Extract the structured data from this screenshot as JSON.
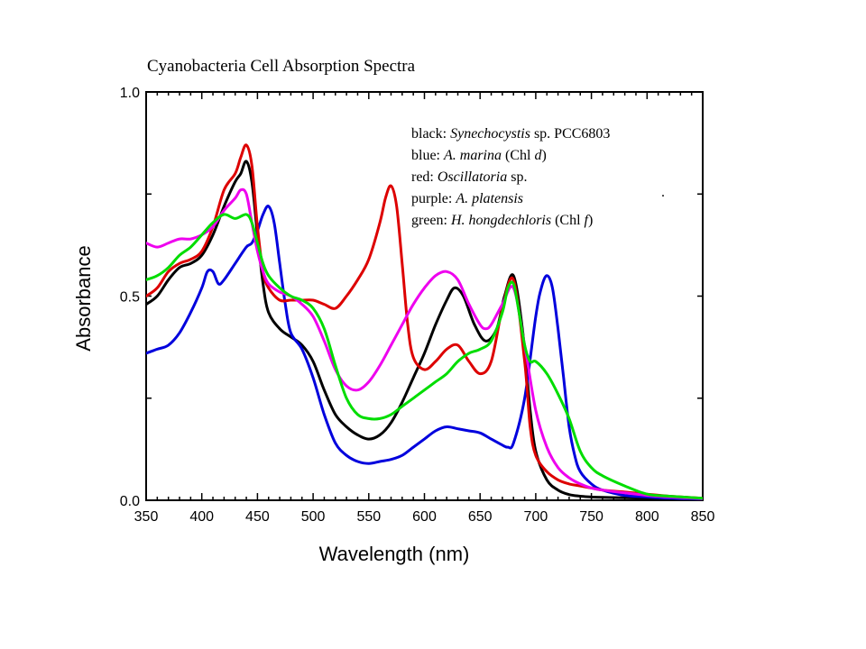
{
  "chart_data": {
    "type": "line",
    "title": "Cyanobacteria Cell Absorption Spectra",
    "xlabel": "Wavelength (nm)",
    "ylabel": "Absorbance",
    "xlim": [
      350,
      850
    ],
    "ylim": [
      0.0,
      1.0
    ],
    "x_ticks": [
      350,
      400,
      450,
      500,
      550,
      600,
      650,
      700,
      750,
      800,
      850
    ],
    "x_tick_labels": [
      "350",
      "400",
      "450",
      "500",
      "550",
      "600",
      "650",
      "700",
      "750",
      "800",
      "850"
    ],
    "y_ticks": [
      0.0,
      0.5,
      1.0
    ],
    "y_tick_labels": [
      "0.0",
      "0.5",
      "1.0"
    ],
    "grid": false,
    "legend_position": "top-right",
    "legend": [
      {
        "color_word": "black:",
        "name": "Synechocystis",
        "suffix": " sp. PCC6803"
      },
      {
        "color_word": "blue:",
        "name": "A. marina",
        "suffix": " (Chl ",
        "note": "d",
        "close": ")"
      },
      {
        "color_word": "red:",
        "name": "Oscillatoria",
        "suffix": " sp."
      },
      {
        "color_word": "purple:",
        "name": "A. platensis",
        "suffix": ""
      },
      {
        "color_word": "green:",
        "name": "H. hongdechloris",
        "suffix": " (Chl ",
        "note": "f",
        "close": ")"
      }
    ],
    "series": [
      {
        "color": "#000000",
        "x": [
          350,
          360,
          370,
          380,
          390,
          400,
          410,
          420,
          430,
          435,
          440,
          445,
          450,
          455,
          460,
          470,
          480,
          490,
          500,
          510,
          520,
          530,
          540,
          550,
          560,
          570,
          580,
          590,
          600,
          610,
          620,
          627,
          635,
          645,
          655,
          665,
          672,
          680,
          688,
          695,
          700,
          710,
          720,
          730,
          740,
          750,
          760,
          780,
          800,
          820,
          850
        ],
        "y": [
          0.48,
          0.5,
          0.54,
          0.57,
          0.58,
          0.6,
          0.65,
          0.72,
          0.78,
          0.8,
          0.83,
          0.78,
          0.65,
          0.53,
          0.46,
          0.42,
          0.4,
          0.38,
          0.34,
          0.27,
          0.21,
          0.18,
          0.16,
          0.15,
          0.16,
          0.19,
          0.24,
          0.3,
          0.36,
          0.43,
          0.49,
          0.52,
          0.5,
          0.43,
          0.39,
          0.42,
          0.5,
          0.55,
          0.42,
          0.22,
          0.12,
          0.05,
          0.025,
          0.014,
          0.01,
          0.008,
          0.007,
          0.006,
          0.005,
          0.004,
          0.003
        ]
      },
      {
        "color": "#0000dd",
        "x": [
          350,
          360,
          370,
          380,
          390,
          400,
          405,
          410,
          415,
          420,
          430,
          440,
          445,
          450,
          455,
          460,
          465,
          470,
          475,
          480,
          490,
          500,
          510,
          520,
          530,
          540,
          550,
          560,
          570,
          580,
          590,
          600,
          610,
          620,
          630,
          640,
          650,
          660,
          670,
          675,
          680,
          690,
          700,
          705,
          710,
          715,
          720,
          725,
          730,
          735,
          740,
          750,
          760,
          780,
          800,
          820,
          850
        ],
        "y": [
          0.36,
          0.37,
          0.38,
          0.41,
          0.46,
          0.52,
          0.56,
          0.56,
          0.53,
          0.54,
          0.58,
          0.62,
          0.63,
          0.66,
          0.7,
          0.72,
          0.68,
          0.58,
          0.48,
          0.41,
          0.37,
          0.3,
          0.21,
          0.14,
          0.11,
          0.095,
          0.09,
          0.095,
          0.1,
          0.11,
          0.13,
          0.15,
          0.17,
          0.18,
          0.175,
          0.17,
          0.165,
          0.15,
          0.135,
          0.13,
          0.14,
          0.25,
          0.45,
          0.52,
          0.55,
          0.52,
          0.42,
          0.3,
          0.18,
          0.11,
          0.07,
          0.04,
          0.025,
          0.012,
          0.008,
          0.005,
          0.003
        ]
      },
      {
        "color": "#dd0000",
        "x": [
          350,
          360,
          370,
          380,
          390,
          400,
          410,
          420,
          430,
          435,
          440,
          445,
          450,
          455,
          460,
          470,
          480,
          490,
          500,
          510,
          520,
          530,
          540,
          550,
          560,
          565,
          570,
          575,
          580,
          585,
          590,
          600,
          610,
          620,
          630,
          640,
          650,
          660,
          670,
          680,
          690,
          695,
          700,
          710,
          720,
          730,
          740,
          750,
          760,
          780,
          800,
          820,
          850
        ],
        "y": [
          0.5,
          0.52,
          0.56,
          0.58,
          0.59,
          0.61,
          0.67,
          0.76,
          0.8,
          0.84,
          0.87,
          0.82,
          0.67,
          0.56,
          0.52,
          0.49,
          0.49,
          0.49,
          0.49,
          0.48,
          0.47,
          0.5,
          0.54,
          0.59,
          0.68,
          0.74,
          0.77,
          0.72,
          0.58,
          0.43,
          0.35,
          0.32,
          0.34,
          0.37,
          0.38,
          0.34,
          0.31,
          0.34,
          0.47,
          0.54,
          0.34,
          0.18,
          0.11,
          0.07,
          0.05,
          0.04,
          0.035,
          0.03,
          0.025,
          0.02,
          0.015,
          0.01,
          0.005
        ]
      },
      {
        "color": "#ee00ee",
        "x": [
          350,
          360,
          370,
          380,
          390,
          400,
          410,
          420,
          430,
          435,
          440,
          445,
          450,
          455,
          460,
          470,
          480,
          490,
          500,
          510,
          520,
          530,
          540,
          550,
          560,
          570,
          580,
          590,
          600,
          610,
          620,
          630,
          640,
          650,
          655,
          660,
          670,
          680,
          690,
          700,
          710,
          720,
          730,
          740,
          750,
          760,
          780,
          800,
          820,
          850
        ],
        "y": [
          0.63,
          0.62,
          0.63,
          0.64,
          0.64,
          0.65,
          0.67,
          0.71,
          0.74,
          0.76,
          0.75,
          0.68,
          0.61,
          0.56,
          0.53,
          0.51,
          0.5,
          0.48,
          0.45,
          0.39,
          0.32,
          0.28,
          0.27,
          0.29,
          0.33,
          0.38,
          0.43,
          0.48,
          0.52,
          0.55,
          0.56,
          0.54,
          0.48,
          0.43,
          0.42,
          0.43,
          0.48,
          0.52,
          0.38,
          0.22,
          0.13,
          0.08,
          0.055,
          0.04,
          0.03,
          0.025,
          0.018,
          0.012,
          0.008,
          0.004
        ]
      },
      {
        "color": "#00dd00",
        "x": [
          350,
          360,
          370,
          380,
          390,
          400,
          410,
          420,
          430,
          440,
          445,
          450,
          455,
          460,
          470,
          480,
          490,
          500,
          510,
          520,
          530,
          540,
          550,
          560,
          570,
          580,
          590,
          600,
          610,
          620,
          630,
          640,
          650,
          660,
          670,
          675,
          680,
          685,
          690,
          695,
          700,
          710,
          720,
          730,
          740,
          750,
          760,
          780,
          800,
          820,
          850
        ],
        "y": [
          0.54,
          0.55,
          0.57,
          0.6,
          0.62,
          0.65,
          0.68,
          0.7,
          0.69,
          0.7,
          0.68,
          0.63,
          0.58,
          0.55,
          0.52,
          0.5,
          0.49,
          0.47,
          0.42,
          0.33,
          0.25,
          0.21,
          0.2,
          0.2,
          0.21,
          0.23,
          0.25,
          0.27,
          0.29,
          0.31,
          0.34,
          0.36,
          0.37,
          0.39,
          0.46,
          0.52,
          0.53,
          0.46,
          0.38,
          0.34,
          0.34,
          0.31,
          0.26,
          0.2,
          0.12,
          0.08,
          0.06,
          0.035,
          0.015,
          0.01,
          0.005
        ]
      }
    ]
  }
}
